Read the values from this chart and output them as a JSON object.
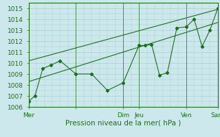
{
  "xlabel": "Pression niveau de la mer( hPa )",
  "bg_color": "#cce8ec",
  "grid_color": "#aaccd0",
  "line_color": "#1a6e1a",
  "ylim": [
    1006,
    1015.5
  ],
  "xlim": [
    0,
    6.0
  ],
  "xtick_positions": [
    0.0,
    1.5,
    3.0,
    3.5,
    5.0,
    6.0
  ],
  "xtick_labels": [
    "Mer",
    "",
    "Dim",
    "Jeu",
    "Ven",
    "Sam"
  ],
  "ytick_positions": [
    1006,
    1007,
    1008,
    1009,
    1010,
    1011,
    1012,
    1013,
    1014,
    1015
  ],
  "main_series_x": [
    0.0,
    0.2,
    0.45,
    0.7,
    1.0,
    1.5,
    2.0,
    2.5,
    3.0,
    3.5,
    3.7,
    3.9,
    4.15,
    4.4,
    4.7,
    5.0,
    5.25,
    5.5,
    5.75,
    6.0
  ],
  "main_series_y": [
    1006.5,
    1007.0,
    1009.5,
    1009.8,
    1010.2,
    1009.0,
    1009.0,
    1007.5,
    1008.2,
    1011.6,
    1011.6,
    1011.7,
    1008.9,
    1009.1,
    1013.2,
    1013.3,
    1014.0,
    1011.5,
    1013.0,
    1015.0
  ],
  "line1_x": [
    0.0,
    6.0
  ],
  "line1_y": [
    1010.2,
    1014.9
  ],
  "line2_x": [
    0.0,
    6.0
  ],
  "line2_y": [
    1008.3,
    1013.7
  ],
  "vline_positions": [
    1.5,
    3.0,
    3.5,
    5.0
  ]
}
